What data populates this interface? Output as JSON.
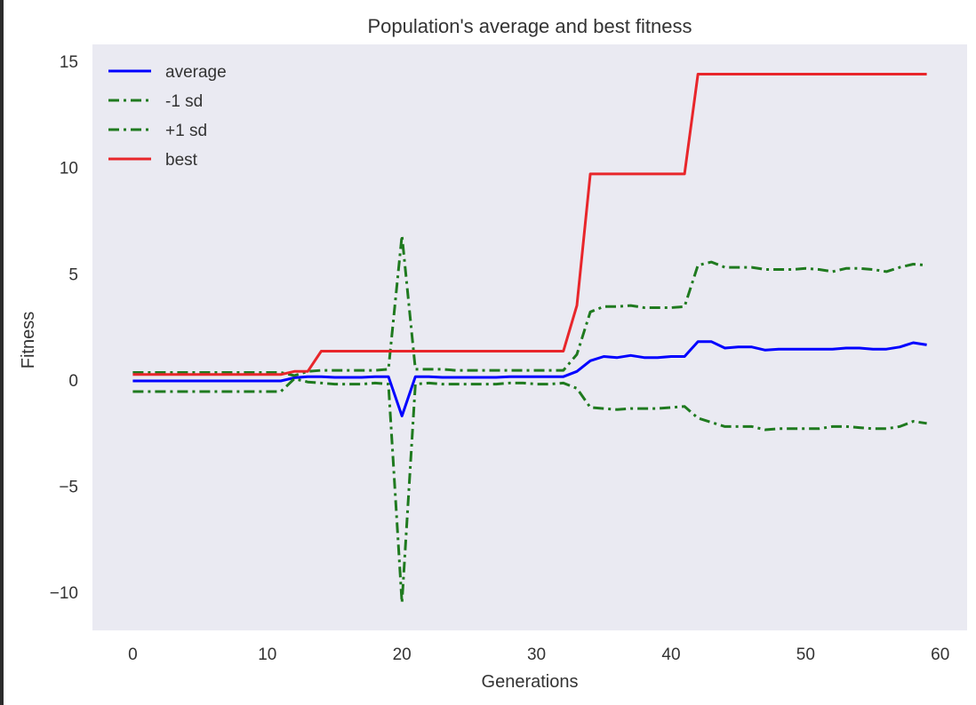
{
  "chart_data": {
    "type": "line",
    "title": "Population's average and best fitness",
    "xlabel": "Generations",
    "ylabel": "Fitness",
    "xlim": [
      -3,
      62
    ],
    "ylim": [
      -11.8,
      15.8
    ],
    "xticks": [
      0,
      10,
      20,
      30,
      40,
      50,
      60
    ],
    "yticks": [
      -10,
      -5,
      0,
      5,
      10,
      15
    ],
    "xtick_labels": [
      "0",
      "10",
      "20",
      "30",
      "40",
      "50",
      "60"
    ],
    "ytick_labels": [
      "−10",
      "−5",
      "0",
      "5",
      "10",
      "15"
    ],
    "grid": false,
    "background": "#eaeaf2",
    "legend_position": "top-left",
    "x": [
      0,
      1,
      2,
      3,
      4,
      5,
      6,
      7,
      8,
      9,
      10,
      11,
      12,
      13,
      14,
      15,
      16,
      17,
      18,
      19,
      20,
      21,
      22,
      23,
      24,
      25,
      26,
      27,
      28,
      29,
      30,
      31,
      32,
      33,
      34,
      35,
      36,
      37,
      38,
      39,
      40,
      41,
      42,
      43,
      44,
      45,
      46,
      47,
      48,
      49,
      50,
      51,
      52,
      53,
      54,
      55,
      56,
      57,
      58,
      59
    ],
    "series": [
      {
        "name": "average",
        "color": "#0000ff",
        "style": "solid",
        "values": [
          -0.05,
          -0.05,
          -0.05,
          -0.05,
          -0.05,
          -0.05,
          -0.05,
          -0.05,
          -0.05,
          -0.05,
          -0.05,
          -0.05,
          0.1,
          0.15,
          0.15,
          0.12,
          0.12,
          0.12,
          0.15,
          0.15,
          -1.7,
          0.15,
          0.15,
          0.12,
          0.12,
          0.12,
          0.12,
          0.12,
          0.15,
          0.15,
          0.15,
          0.15,
          0.15,
          0.4,
          0.9,
          1.1,
          1.05,
          1.15,
          1.05,
          1.05,
          1.1,
          1.1,
          1.8,
          1.8,
          1.5,
          1.55,
          1.55,
          1.4,
          1.45,
          1.45,
          1.45,
          1.45,
          1.45,
          1.5,
          1.5,
          1.45,
          1.45,
          1.55,
          1.75,
          1.65
        ]
      },
      {
        "name": "-1 sd",
        "color": "#1f7a1f",
        "style": "dashdot",
        "values": [
          -0.55,
          -0.55,
          -0.55,
          -0.55,
          -0.55,
          -0.55,
          -0.55,
          -0.55,
          -0.55,
          -0.55,
          -0.55,
          -0.55,
          0.05,
          -0.1,
          -0.15,
          -0.2,
          -0.2,
          -0.2,
          -0.15,
          -0.2,
          -10.5,
          -0.2,
          -0.15,
          -0.2,
          -0.2,
          -0.2,
          -0.2,
          -0.2,
          -0.15,
          -0.15,
          -0.2,
          -0.2,
          -0.15,
          -0.4,
          -1.3,
          -1.35,
          -1.4,
          -1.35,
          -1.35,
          -1.35,
          -1.3,
          -1.25,
          -1.8,
          -2.0,
          -2.2,
          -2.2,
          -2.2,
          -2.35,
          -2.3,
          -2.3,
          -2.3,
          -2.3,
          -2.2,
          -2.2,
          -2.25,
          -2.3,
          -2.3,
          -2.2,
          -1.95,
          -2.05
        ]
      },
      {
        "name": "+1 sd",
        "color": "#1f7a1f",
        "style": "dashdot",
        "values": [
          0.35,
          0.35,
          0.35,
          0.35,
          0.35,
          0.35,
          0.35,
          0.35,
          0.35,
          0.35,
          0.35,
          0.35,
          0.2,
          0.4,
          0.45,
          0.45,
          0.45,
          0.45,
          0.45,
          0.5,
          6.8,
          0.5,
          0.5,
          0.5,
          0.45,
          0.45,
          0.45,
          0.45,
          0.45,
          0.45,
          0.45,
          0.45,
          0.45,
          1.2,
          3.2,
          3.45,
          3.45,
          3.5,
          3.4,
          3.4,
          3.4,
          3.45,
          5.4,
          5.55,
          5.3,
          5.3,
          5.3,
          5.2,
          5.2,
          5.2,
          5.25,
          5.2,
          5.1,
          5.25,
          5.25,
          5.2,
          5.1,
          5.3,
          5.45,
          5.4
        ]
      },
      {
        "name": "best",
        "color": "#e8262b",
        "style": "solid",
        "values": [
          0.25,
          0.25,
          0.25,
          0.25,
          0.25,
          0.25,
          0.25,
          0.25,
          0.25,
          0.25,
          0.25,
          0.25,
          0.4,
          0.4,
          1.35,
          1.35,
          1.35,
          1.35,
          1.35,
          1.35,
          1.35,
          1.35,
          1.35,
          1.35,
          1.35,
          1.35,
          1.35,
          1.35,
          1.35,
          1.35,
          1.35,
          1.35,
          1.35,
          3.5,
          9.7,
          9.7,
          9.7,
          9.7,
          9.7,
          9.7,
          9.7,
          9.7,
          14.4,
          14.4,
          14.4,
          14.4,
          14.4,
          14.4,
          14.4,
          14.4,
          14.4,
          14.4,
          14.4,
          14.4,
          14.4,
          14.4,
          14.4,
          14.4,
          14.4,
          14.4
        ]
      }
    ]
  }
}
